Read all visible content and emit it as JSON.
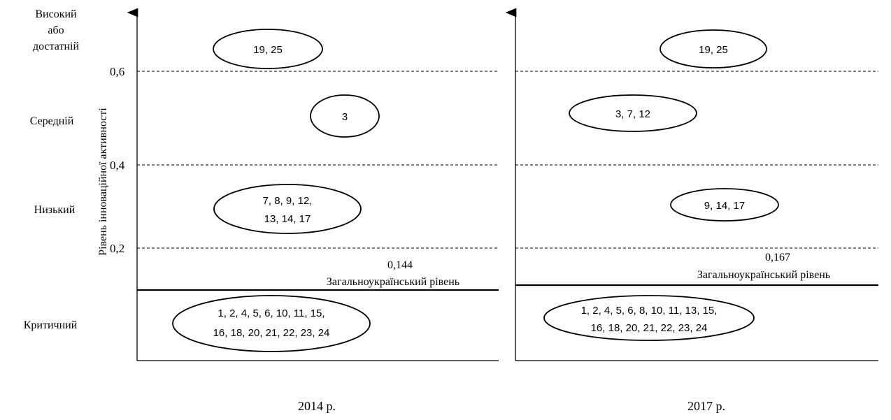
{
  "y_axis_label": "Рівень інноваційної активності",
  "levels": {
    "high_line1": "Високий",
    "high_line2": "або",
    "high_line3": "достатній",
    "medium": "Середній",
    "low": "Низький",
    "critical": "Критичний"
  },
  "ticks": [
    "0,6",
    "0,4",
    "0,2"
  ],
  "panels": [
    {
      "year_label": "2014 р.",
      "average_value": "0,144",
      "average_label": "Загальноукраїнський рівень",
      "groups": {
        "high": [
          "19, 25"
        ],
        "medium": [
          "3"
        ],
        "low": [
          "7, 8, 9, 12,",
          "13, 14, 17"
        ],
        "critical": [
          "1, 2, 4, 5, 6, 10, 11, 15,",
          "16, 18, 20, 21, 22, 23, 24"
        ]
      }
    },
    {
      "year_label": "2017 р.",
      "average_value": "0,167",
      "average_label": "Загальноукраїнський рівень",
      "groups": {
        "high": [
          "19, 25"
        ],
        "medium": [
          "3, 7, 12"
        ],
        "low": [
          "9, 14, 17"
        ],
        "critical": [
          "1, 2, 4, 5, 6, 8, 10, 11, 13, 15,",
          "16, 18, 20, 21, 22, 23, 24"
        ]
      }
    }
  ]
}
